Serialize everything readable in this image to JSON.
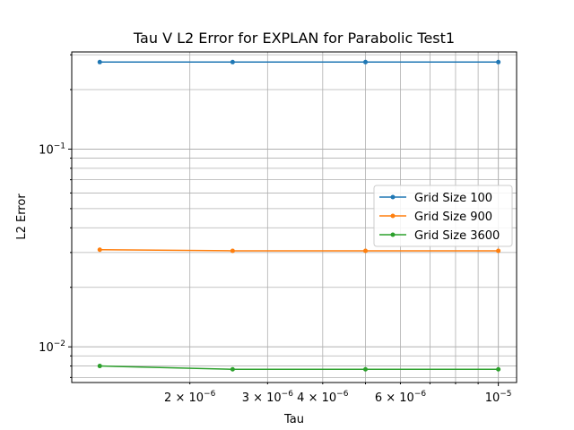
{
  "chart_data": {
    "type": "line",
    "title": "Tau V L2 Error for EXPLAN for Parabolic Test1",
    "xlabel": "Tau",
    "ylabel": "L2 Error",
    "x_scale": "log",
    "y_scale": "log",
    "grid": true,
    "legend_position": "center-right",
    "x": [
      1.25e-06,
      2.5e-06,
      5e-06,
      1e-05
    ],
    "xlim": [
      1.08e-06,
      1.1e-05
    ],
    "ylim": [
      0.0066,
      0.31
    ],
    "series": [
      {
        "name": "Grid Size 100",
        "color": "#1f77b4",
        "values": [
          0.2755,
          0.2755,
          0.2755,
          0.2755
        ]
      },
      {
        "name": "Grid Size 900",
        "color": "#ff7f0e",
        "values": [
          0.031,
          0.0306,
          0.0306,
          0.0306
        ]
      },
      {
        "name": "Grid Size 3600",
        "color": "#2ca02c",
        "values": [
          0.008,
          0.0077,
          0.0077,
          0.0077
        ]
      }
    ],
    "x_ticks": [
      {
        "value": 2e-06,
        "mantissa": "2",
        "exp": "−6"
      },
      {
        "value": 3e-06,
        "mantissa": "3",
        "exp": "−6"
      },
      {
        "value": 4e-06,
        "mantissa": "4",
        "exp": "−6"
      },
      {
        "value": 6e-06,
        "mantissa": "6",
        "exp": "−6"
      },
      {
        "value": 1e-05,
        "mantissa": "",
        "exp": "−5"
      }
    ],
    "y_ticks": [
      {
        "value": 0.01,
        "exp": "−2"
      },
      {
        "value": 0.1,
        "exp": "−1"
      }
    ]
  }
}
